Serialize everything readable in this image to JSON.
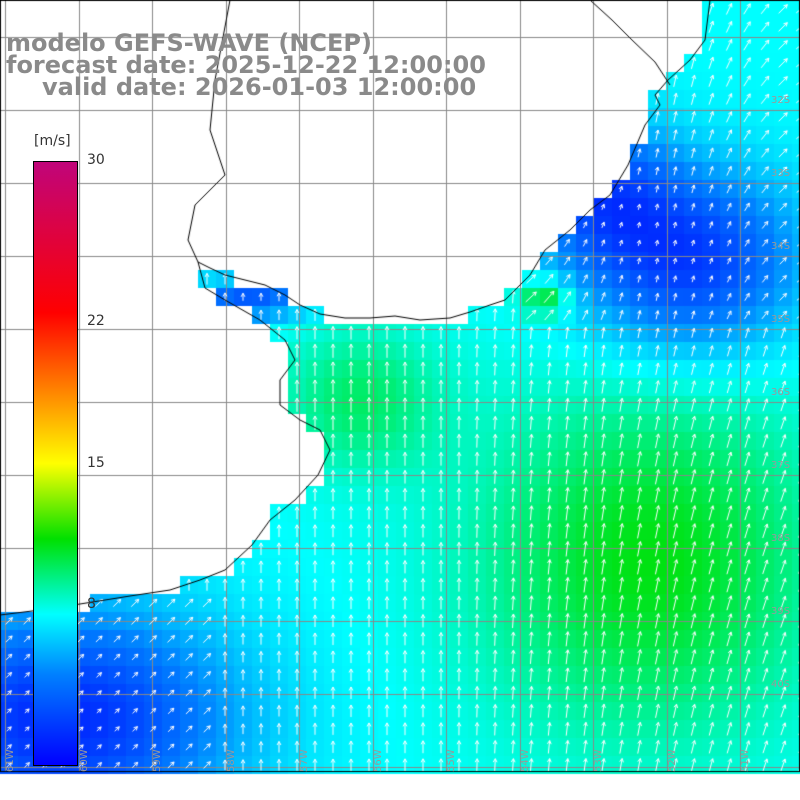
{
  "title": {
    "line1": "modelo GEFS-WAVE (NCEP)",
    "line2": "forecast date: 2025-12-22 12:00:00",
    "line3": "valid date: 2026-01-03 12:00:00"
  },
  "legend": {
    "unit": "[m/s]",
    "min": 0,
    "max": 30,
    "ticks": [
      {
        "value": 30,
        "label": "30"
      },
      {
        "value": 22,
        "label": "22"
      },
      {
        "value": 15,
        "label": "15"
      },
      {
        "value": 8,
        "label": "8"
      }
    ]
  },
  "axes": {
    "lon_labels": [
      "61W",
      "60W",
      "59W",
      "58W",
      "57W",
      "56W",
      "55W",
      "54W",
      "53W",
      "52W",
      "51W"
    ],
    "lat_labels": [
      "32S",
      "33S",
      "34S",
      "35S",
      "36S",
      "37S",
      "38S",
      "39S",
      "40S"
    ],
    "lon_range": [
      -61.5,
      -50.5
    ],
    "lat_range": [
      -31.5,
      -41.2
    ]
  },
  "colors": {
    "water_low": "#0000ff",
    "water_mid": "#00ffff",
    "water_high": "#00e000",
    "land": "#ffffff",
    "grid": "#888888",
    "coast": "#000000",
    "arrows": "#ffffff"
  }
}
